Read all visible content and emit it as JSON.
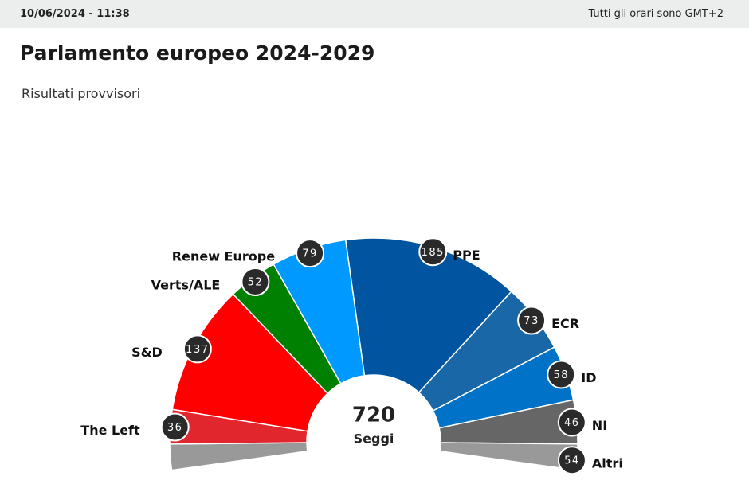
{
  "header": {
    "timestamp": "10/06/2024 - 11:38",
    "timezone_note": "Tutti gli orari sono GMT+2"
  },
  "chart_data": {
    "type": "parliament",
    "title": "Parlamento europeo 2024-2029",
    "subtitle": "Risultati provvisori",
    "total": 720,
    "total_label": "Seggi",
    "categories": [
      "The Left",
      "S&D",
      "Verts/ALE",
      "Renew Europe",
      "PPE",
      "ECR",
      "ID",
      "NI",
      "Altri"
    ],
    "values": [
      36,
      137,
      52,
      79,
      185,
      73,
      58,
      46,
      54
    ],
    "colors": [
      "#e2262e",
      "#ff0000",
      "#008000",
      "#0099ff",
      "#0054a0",
      "#1a67a8",
      "#0073c8",
      "#666666",
      "#999999"
    ]
  }
}
